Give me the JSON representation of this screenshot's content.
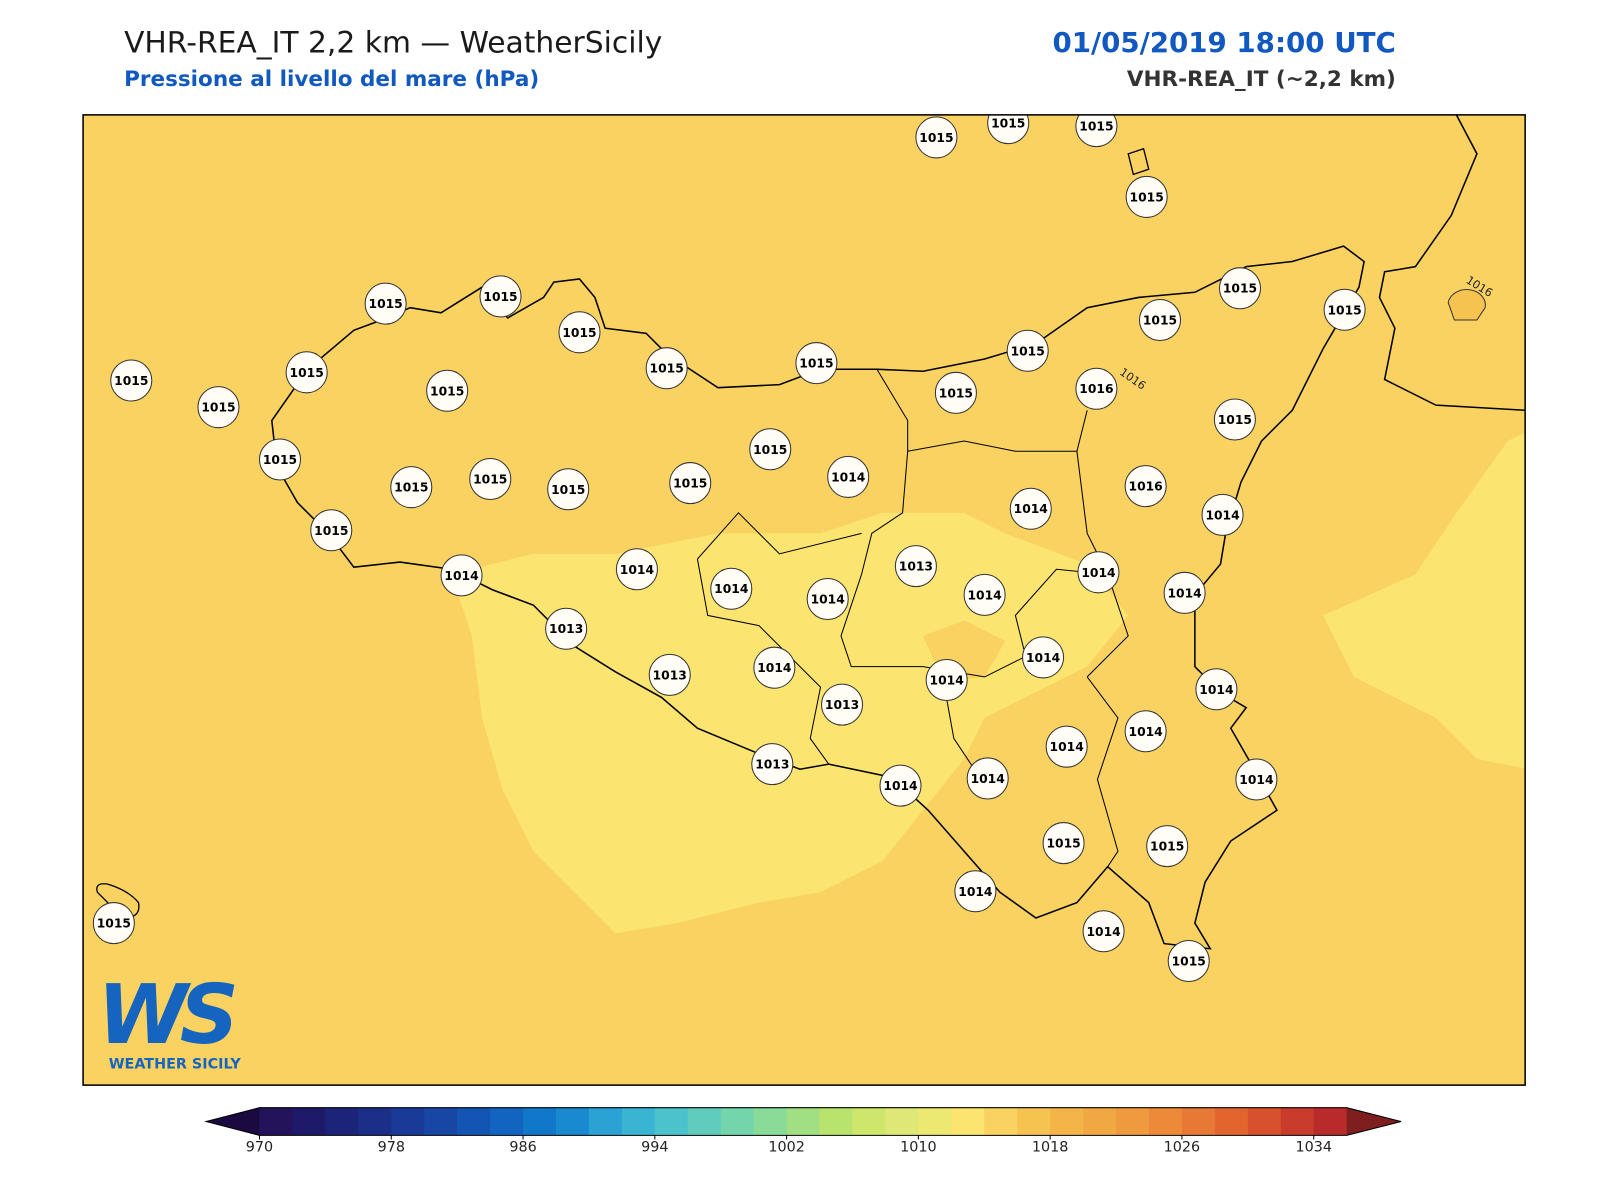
{
  "header": {
    "title": "VHR-REA_IT 2,2 km — WeatherSicily",
    "subtitle": "Pressione al livello del mare (hPa)",
    "datetime": "01/05/2019 18:00 UTC",
    "model": "VHR-REA_IT (~2,2 km)"
  },
  "stations": [
    1015,
    1015,
    1015,
    1015,
    1015,
    1015,
    1015,
    1015,
    1015,
    1015,
    1015,
    1015,
    1015,
    1015,
    1015,
    1015,
    1015,
    1015,
    1016,
    1015,
    1015,
    1015,
    1014,
    1015,
    1015,
    1015,
    1015,
    1016,
    1014,
    1014,
    1015,
    1014,
    1014,
    1013,
    1014,
    1014,
    1014,
    1014,
    1014,
    1013,
    1013,
    1014,
    1014,
    1014,
    1014,
    1013,
    1014,
    1014,
    1013,
    1014,
    1014,
    1014,
    1015,
    1015,
    1014,
    1014,
    1015,
    1015
  ],
  "contour_labels": [
    "1016",
    "1016"
  ],
  "logo": {
    "mark": "WS",
    "text": "WEATHER SICILY"
  },
  "colorbar": {
    "lim": [
      970,
      1036
    ],
    "ticks": [
      970,
      978,
      986,
      994,
      1002,
      1010,
      1018,
      1026,
      1034
    ],
    "colors": [
      "#24125a",
      "#1e1a6a",
      "#1c247a",
      "#1b2e88",
      "#193a96",
      "#1747a5",
      "#1455b3",
      "#1164c0",
      "#1177c9",
      "#1a8ad0",
      "#2aa2d3",
      "#39b5d3",
      "#4cc3cc",
      "#60ccbe",
      "#74d4ac",
      "#8adb97",
      "#a0e082",
      "#b8e46d",
      "#cde66b",
      "#dee877",
      "#ece871",
      "#fbe46f",
      "#f9d262",
      "#f6c350",
      "#f4b548",
      "#f1a843",
      "#ef9a3e",
      "#ec8a3a",
      "#e87835",
      "#e26530",
      "#d8512d",
      "#c93b2b",
      "#b92a2a"
    ],
    "under": "#1a0a3f",
    "over": "#7e1e1e"
  }
}
